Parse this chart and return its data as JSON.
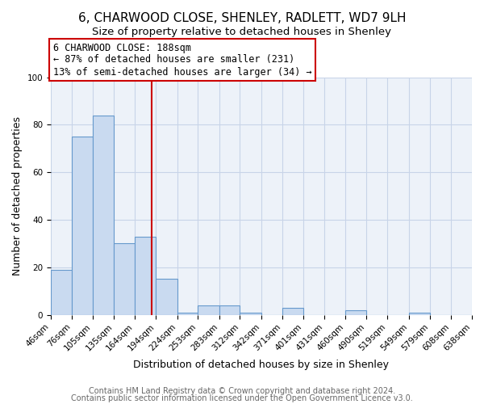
{
  "title": "6, CHARWOOD CLOSE, SHENLEY, RADLETT, WD7 9LH",
  "subtitle": "Size of property relative to detached houses in Shenley",
  "xlabel": "Distribution of detached houses by size in Shenley",
  "ylabel": "Number of detached properties",
  "bin_labels": [
    "46sqm",
    "76sqm",
    "105sqm",
    "135sqm",
    "164sqm",
    "194sqm",
    "224sqm",
    "253sqm",
    "283sqm",
    "312sqm",
    "342sqm",
    "371sqm",
    "401sqm",
    "431sqm",
    "460sqm",
    "490sqm",
    "519sqm",
    "549sqm",
    "579sqm",
    "608sqm",
    "638sqm"
  ],
  "bar_values": [
    19,
    75,
    84,
    30,
    33,
    15,
    1,
    4,
    4,
    1,
    0,
    3,
    0,
    0,
    2,
    0,
    0,
    1,
    0,
    0
  ],
  "bin_edges": [
    46,
    76,
    105,
    135,
    164,
    194,
    224,
    253,
    283,
    312,
    342,
    371,
    401,
    431,
    460,
    490,
    519,
    549,
    579,
    608,
    638
  ],
  "property_size": 188,
  "property_line_color": "#cc0000",
  "bar_fill_color": "#c9daf0",
  "bar_edge_color": "#6699cc",
  "annotation_text": "6 CHARWOOD CLOSE: 188sqm\n← 87% of detached houses are smaller (231)\n13% of semi-detached houses are larger (34) →",
  "annotation_box_edge_color": "#cc0000",
  "ylim": [
    0,
    100
  ],
  "footer_line1": "Contains HM Land Registry data © Crown copyright and database right 2024.",
  "footer_line2": "Contains public sector information licensed under the Open Government Licence v3.0.",
  "background_color": "#ffffff",
  "plot_bg_color": "#edf2f9",
  "grid_color": "#c8d4e8",
  "title_fontsize": 11,
  "subtitle_fontsize": 9.5,
  "axis_label_fontsize": 9,
  "tick_fontsize": 7.5,
  "footer_fontsize": 7,
  "annotation_fontsize": 8.5
}
